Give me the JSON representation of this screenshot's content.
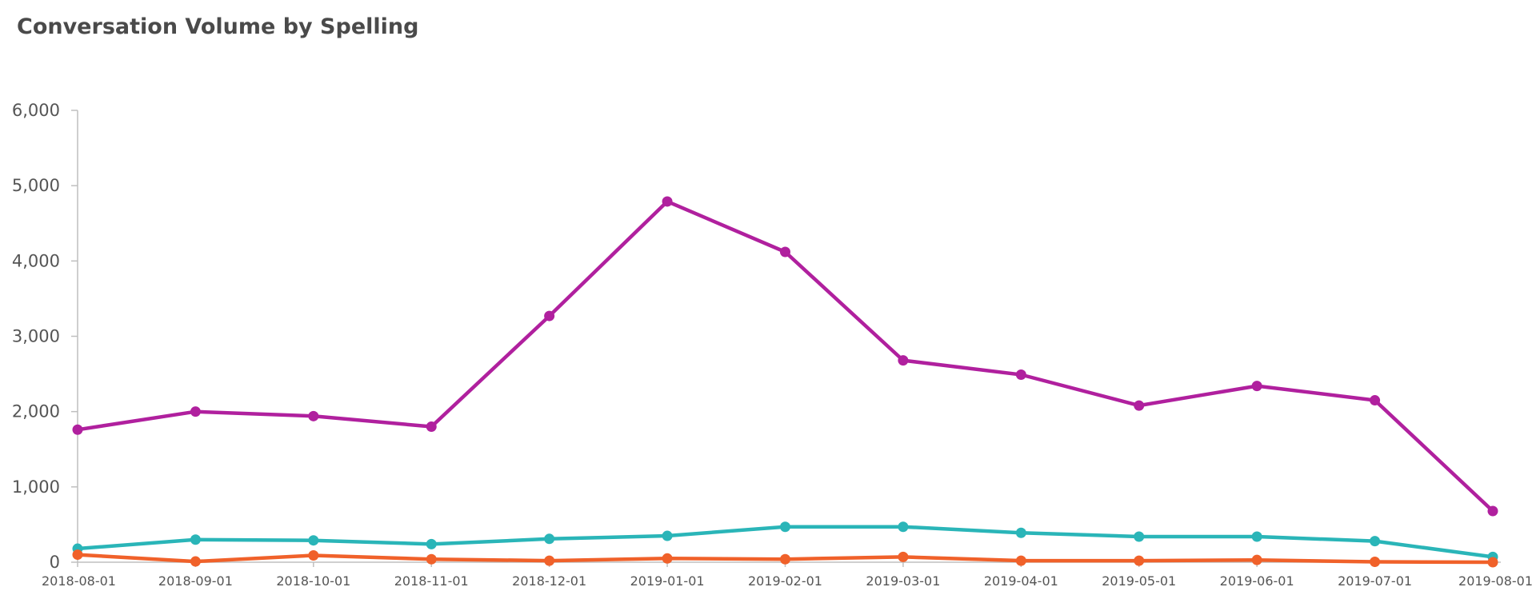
{
  "chart_data": {
    "type": "line",
    "title": "Conversation Volume by Spelling",
    "xlabel": "",
    "ylabel": "",
    "x": [
      "2018-08-01",
      "2018-09-01",
      "2018-10-01",
      "2018-11-01",
      "2018-12-01",
      "2019-01-01",
      "2019-02-01",
      "2019-03-01",
      "2019-04-01",
      "2019-05-01",
      "2019-06-01",
      "2019-07-01",
      "2019-08-01"
    ],
    "ylim": [
      0,
      6000
    ],
    "yticks": [
      0,
      1000,
      2000,
      3000,
      4000,
      5000,
      6000
    ],
    "ytick_labels": [
      "0",
      "1,000",
      "2,000",
      "3,000",
      "4,000",
      "5,000",
      "6,000"
    ],
    "grid": false,
    "legend": "none",
    "series": [
      {
        "color": "#b0209e",
        "values": [
          1760,
          2000,
          1940,
          1800,
          3270,
          4790,
          4120,
          2680,
          2490,
          2080,
          2340,
          2150,
          680
        ]
      },
      {
        "color": "#2ab5b8",
        "values": [
          180,
          300,
          290,
          240,
          310,
          350,
          470,
          470,
          390,
          340,
          340,
          280,
          70
        ]
      },
      {
        "color": "#f0612a",
        "values": [
          100,
          10,
          90,
          40,
          20,
          50,
          40,
          70,
          20,
          20,
          30,
          5,
          0
        ]
      }
    ]
  }
}
